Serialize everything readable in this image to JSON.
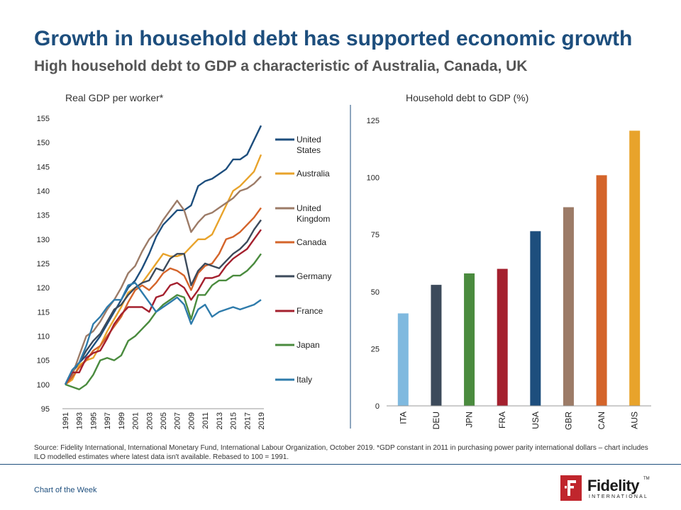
{
  "slide": {
    "title": "Growth in household debt has supported economic growth",
    "subtitle": "High household debt to GDP a characteristic of Australia, Canada, UK",
    "source": "Source: Fidelity International, International Monetary Fund, International Labour Organization, October 2019. *GDP constant in 2011 in purchasing power parity international dollars – chart includes ILO modelled  estimates where latest data isn't available. Rebased to 100 = 1991.",
    "footer_label": "Chart of the Week",
    "logo": {
      "name": "Fidelity",
      "sub": "INTERNATIONAL",
      "tm": "TM",
      "mark_icon": "fidelity-f-icon"
    }
  },
  "chart_data": [
    {
      "type": "line",
      "title": "Real GDP per worker*",
      "xlabel": "",
      "ylabel": "",
      "ylim": [
        95,
        155
      ],
      "yticks": [
        95,
        100,
        105,
        110,
        115,
        120,
        125,
        130,
        135,
        140,
        145,
        150,
        155
      ],
      "xticks": [
        1991,
        1993,
        1995,
        1997,
        1999,
        2001,
        2003,
        2005,
        2007,
        2009,
        2011,
        2013,
        2015,
        2017,
        2019
      ],
      "legend_position": "right",
      "grid": false,
      "x": [
        1991,
        1992,
        1993,
        1994,
        1995,
        1996,
        1997,
        1998,
        1999,
        2000,
        2001,
        2002,
        2003,
        2004,
        2005,
        2006,
        2007,
        2008,
        2009,
        2010,
        2011,
        2012,
        2013,
        2014,
        2015,
        2016,
        2017,
        2018,
        2019
      ],
      "series": [
        {
          "name": "United States",
          "color": "#1d4e7d",
          "values": [
            100,
            102.5,
            104.5,
            106,
            108,
            110,
            112.5,
            115,
            117.5,
            120,
            121.5,
            124,
            127,
            130.5,
            133,
            134.5,
            136,
            136,
            137,
            141,
            142,
            142.5,
            143.5,
            144.5,
            146.5,
            146.5,
            147.5,
            150.5,
            153.5
          ]
        },
        {
          "name": "Australia",
          "color": "#e8a32b",
          "values": [
            100,
            101,
            104,
            105,
            105.5,
            108,
            111,
            113.5,
            116,
            119,
            120,
            121,
            123,
            125,
            127,
            126.5,
            126.5,
            127,
            128.5,
            130,
            130,
            131,
            134,
            137,
            140,
            141,
            142.5,
            144,
            147.5
          ]
        },
        {
          "name": "United Kingdom",
          "color": "#9c7b67",
          "values": [
            100,
            102,
            106,
            110,
            111,
            113,
            115.5,
            117.5,
            120,
            123,
            124.5,
            127.5,
            130,
            131.5,
            134,
            136,
            138,
            136,
            131.5,
            133.5,
            135,
            135.5,
            136.5,
            137.5,
            138.5,
            140,
            140.5,
            141.5,
            143
          ]
        },
        {
          "name": "Canada",
          "color": "#d4642a",
          "values": [
            100,
            101.5,
            103.5,
            105,
            107,
            108,
            110,
            112,
            114,
            117,
            119.5,
            120.5,
            119.5,
            121,
            123,
            124,
            123.5,
            122.5,
            119.5,
            123,
            124.5,
            125,
            127,
            130,
            130.5,
            131.5,
            133,
            134.5,
            136.5
          ]
        },
        {
          "name": "Germany",
          "color": "#3c4a5b",
          "values": [
            100,
            103,
            104.5,
            107,
            109,
            110.5,
            113,
            115.5,
            116.5,
            118.5,
            120,
            121,
            121.5,
            124,
            123.5,
            126,
            127,
            127,
            120.5,
            123.5,
            125,
            124.5,
            124,
            125.5,
            127,
            128,
            129.5,
            132,
            134
          ]
        },
        {
          "name": "France",
          "color": "#a4202e",
          "values": [
            100,
            102.5,
            102.5,
            105.5,
            106.5,
            107,
            109.5,
            112.5,
            114.5,
            116,
            116,
            116,
            115,
            118,
            118.5,
            120.5,
            121,
            120,
            117.5,
            119.5,
            122,
            122,
            122.5,
            124.5,
            126,
            127,
            128,
            130,
            132
          ]
        },
        {
          "name": "Japan",
          "color": "#4a8b3e",
          "values": [
            100,
            99.5,
            99,
            100,
            102,
            105,
            105.5,
            105,
            106,
            109,
            110,
            111.5,
            113,
            115,
            116.5,
            117.5,
            118.5,
            118,
            113.5,
            118.5,
            118.5,
            120.5,
            121.5,
            121.5,
            122.5,
            122.5,
            123.5,
            125,
            127
          ]
        },
        {
          "name": "Italy",
          "color": "#2e7bab",
          "values": [
            100,
            103,
            104.5,
            108,
            112.5,
            114,
            116,
            117.5,
            117.5,
            120.5,
            121,
            119,
            117,
            115,
            116,
            117,
            118,
            116.5,
            112.5,
            115.5,
            116.5,
            114,
            115,
            115.5,
            116,
            115.5,
            116,
            116.5,
            117.5
          ]
        }
      ]
    },
    {
      "type": "bar",
      "title": "Household debt to GDP (%)",
      "xlabel": "",
      "ylabel": "",
      "ylim": [
        0,
        125
      ],
      "yticks": [
        0,
        25,
        50,
        75,
        100,
        125
      ],
      "grid": false,
      "categories": [
        "ITA",
        "DEU",
        "JPN",
        "FRA",
        "USA",
        "GBR",
        "CAN",
        "AUS"
      ],
      "values": [
        40.5,
        53,
        58,
        60,
        76.5,
        87,
        101,
        120.5
      ],
      "colors": [
        "#7fb9df",
        "#3c4a5b",
        "#4a8b3e",
        "#a4202e",
        "#1d4e7d",
        "#9c7b67",
        "#d4642a",
        "#e8a32b"
      ]
    }
  ]
}
